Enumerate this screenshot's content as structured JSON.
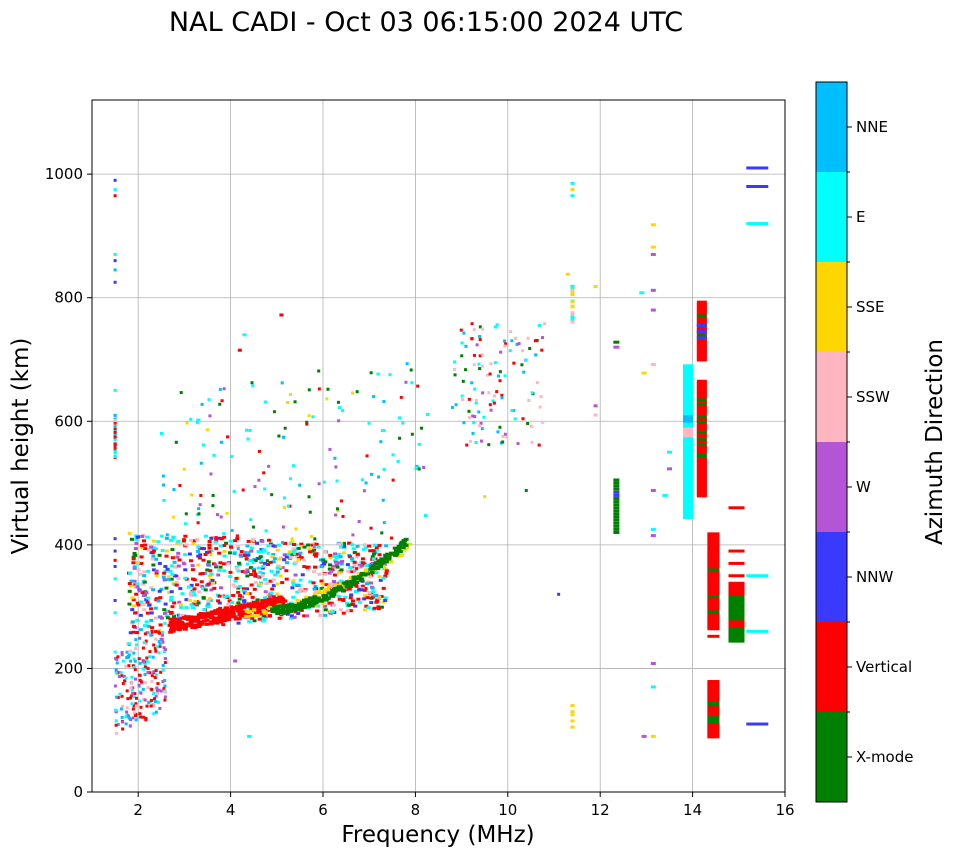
{
  "chart_data": {
    "type": "scatter",
    "title": "NAL CADI - Oct 03 06:15:00 2024 UTC",
    "xlabel": "Frequency (MHz)",
    "ylabel": "Virtual height (km)",
    "xlim": [
      1,
      16
    ],
    "ylim": [
      0,
      1120
    ],
    "xticks": [
      2,
      4,
      6,
      8,
      10,
      12,
      14,
      16
    ],
    "yticks": [
      0,
      200,
      400,
      600,
      800,
      1000
    ],
    "grid": true,
    "colorbar": {
      "label": "Azimuth Direction",
      "categories": [
        {
          "name": "X-mode",
          "color": "#008000"
        },
        {
          "name": "Vertical",
          "color": "#ff0000"
        },
        {
          "name": "NNW",
          "color": "#3a3aff"
        },
        {
          "name": "W",
          "color": "#b455d6"
        },
        {
          "name": "SSW",
          "color": "#ffb6c1"
        },
        {
          "name": "SSE",
          "color": "#ffd700"
        },
        {
          "name": "E",
          "color": "#00ffff"
        },
        {
          "name": "NNE",
          "color": "#00bfff"
        }
      ]
    },
    "features": [
      {
        "name": "o-trace-lower",
        "category": "Vertical",
        "x": [
          3.0,
          3.5,
          4.0,
          4.5,
          5.0
        ],
        "y": [
          265,
          272,
          280,
          290,
          298
        ]
      },
      {
        "name": "x-trace",
        "category": "X-mode",
        "x": [
          5.0,
          5.5,
          6.0,
          6.5,
          7.0,
          7.5,
          7.7
        ],
        "y": [
          290,
          305,
          315,
          330,
          350,
          380,
          395
        ]
      },
      {
        "name": "sse-trace",
        "category": "SSE",
        "x": [
          4.5,
          5.5,
          6.5,
          7.0,
          7.5
        ],
        "y": [
          285,
          305,
          325,
          350,
          370
        ]
      },
      {
        "name": "spread-f-cloud",
        "category": "Mixed",
        "x_range": [
          1.8,
          8.2
        ],
        "y_range": [
          90,
          420
        ]
      },
      {
        "name": "e-column-14mhz",
        "category": "E",
        "x": [
          13.9
        ],
        "y_range": [
          445,
          690
        ]
      },
      {
        "name": "vertical-column-14mhz",
        "category": "Vertical",
        "x": [
          14.2
        ],
        "y_range": [
          480,
          795
        ]
      },
      {
        "name": "vertical-column-14-4mhz",
        "category": "Vertical",
        "x": [
          14.4
        ],
        "y_range": [
          90,
          420
        ]
      },
      {
        "name": "xmode-column-15mhz",
        "category": "X-mode",
        "x": [
          14.95
        ],
        "y_range": [
          245,
          340
        ]
      },
      {
        "name": "xmode-column-12mhz",
        "category": "X-mode",
        "x": [
          12.35
        ],
        "y_range": [
          420,
          505
        ]
      },
      {
        "name": "nnw-ticks-15-4mhz",
        "category": "NNW",
        "x": [
          15.3
        ],
        "y": [
          110,
          980,
          1010
        ]
      },
      {
        "name": "e-ticks-15-4mhz",
        "category": "E",
        "x": [
          15.4
        ],
        "y": [
          260,
          350,
          920
        ]
      },
      {
        "name": "low-frequency-echoes",
        "category": "Mixed",
        "x": [
          1.5
        ],
        "y_range": [
          90,
          990
        ]
      }
    ]
  }
}
